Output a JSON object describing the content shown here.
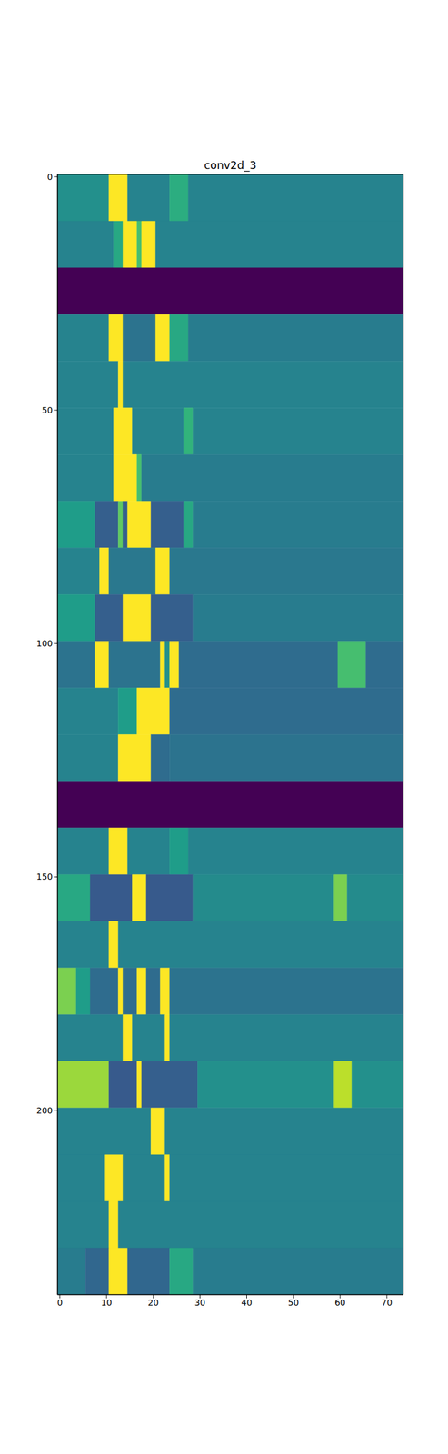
{
  "chart_data": {
    "type": "heatmap",
    "title": "conv2d_3",
    "xlim": [
      -0.5,
      73.5
    ],
    "xticks": [
      0,
      10,
      20,
      30,
      40,
      50,
      60,
      70
    ],
    "ylim": [
      239.5,
      -0.5
    ],
    "yticks": [
      0,
      50,
      100,
      150,
      200
    ],
    "cells": [
      {
        "rows": [
          0,
          9
        ],
        "segments": [
          [
            0,
            10,
            0.5
          ],
          [
            11,
            14,
            1
          ],
          [
            15,
            23,
            0.45
          ],
          [
            24,
            27,
            0.62
          ],
          [
            28,
            73,
            0.45
          ]
        ]
      },
      {
        "rows": [
          10,
          19
        ],
        "segments": [
          [
            0,
            11,
            0.45
          ],
          [
            12,
            13,
            0.6
          ],
          [
            14,
            16,
            1
          ],
          [
            17,
            17,
            0.7
          ],
          [
            18,
            20,
            1
          ],
          [
            21,
            73,
            0.45
          ]
        ]
      },
      {
        "rows": [
          20,
          29
        ],
        "segments": [
          [
            0,
            73,
            0
          ]
        ]
      },
      {
        "rows": [
          30,
          39
        ],
        "segments": [
          [
            0,
            10,
            0.45
          ],
          [
            11,
            13,
            1
          ],
          [
            14,
            20,
            0.38
          ],
          [
            21,
            23,
            1
          ],
          [
            24,
            27,
            0.6
          ],
          [
            28,
            73,
            0.42
          ]
        ]
      },
      {
        "rows": [
          40,
          49
        ],
        "segments": [
          [
            0,
            12,
            0.45
          ],
          [
            13,
            13,
            1
          ],
          [
            14,
            73,
            0.45
          ]
        ]
      },
      {
        "rows": [
          50,
          59
        ],
        "segments": [
          [
            0,
            11,
            0.45
          ],
          [
            12,
            15,
            1
          ],
          [
            16,
            26,
            0.45
          ],
          [
            27,
            28,
            0.65
          ],
          [
            29,
            73,
            0.45
          ]
        ]
      },
      {
        "rows": [
          60,
          69
        ],
        "segments": [
          [
            0,
            11,
            0.45
          ],
          [
            12,
            16,
            1
          ],
          [
            17,
            17,
            0.7
          ],
          [
            18,
            73,
            0.42
          ]
        ]
      },
      {
        "rows": [
          70,
          79
        ],
        "segments": [
          [
            0,
            7,
            0.55
          ],
          [
            8,
            12,
            0.3
          ],
          [
            13,
            13,
            0.75
          ],
          [
            14,
            14,
            0.3
          ],
          [
            15,
            19,
            1
          ],
          [
            20,
            26,
            0.3
          ],
          [
            27,
            28,
            0.6
          ],
          [
            29,
            73,
            0.42
          ]
        ]
      },
      {
        "rows": [
          80,
          89
        ],
        "segments": [
          [
            0,
            8,
            0.45
          ],
          [
            9,
            10,
            1
          ],
          [
            11,
            20,
            0.4
          ],
          [
            21,
            23,
            1
          ],
          [
            24,
            73,
            0.4
          ]
        ]
      },
      {
        "rows": [
          90,
          99
        ],
        "segments": [
          [
            0,
            7,
            0.55
          ],
          [
            8,
            13,
            0.3
          ],
          [
            14,
            19,
            1
          ],
          [
            20,
            28,
            0.3
          ],
          [
            29,
            73,
            0.42
          ]
        ]
      },
      {
        "rows": [
          100,
          109
        ],
        "segments": [
          [
            0,
            7,
            0.38
          ],
          [
            8,
            10,
            1
          ],
          [
            11,
            21,
            0.38
          ],
          [
            22,
            22,
            1
          ],
          [
            23,
            23,
            0.5
          ],
          [
            24,
            25,
            1
          ],
          [
            26,
            59,
            0.35
          ],
          [
            60,
            65,
            0.7
          ],
          [
            66,
            73,
            0.35
          ]
        ]
      },
      {
        "rows": [
          110,
          119
        ],
        "segments": [
          [
            0,
            12,
            0.45
          ],
          [
            13,
            16,
            0.55
          ],
          [
            17,
            23,
            1
          ],
          [
            24,
            73,
            0.35
          ]
        ]
      },
      {
        "rows": [
          120,
          129
        ],
        "segments": [
          [
            0,
            12,
            0.45
          ],
          [
            13,
            19,
            1
          ],
          [
            20,
            23,
            0.35
          ],
          [
            24,
            73,
            0.38
          ]
        ]
      },
      {
        "rows": [
          130,
          139
        ],
        "segments": [
          [
            0,
            73,
            0
          ]
        ]
      },
      {
        "rows": [
          140,
          149
        ],
        "segments": [
          [
            0,
            10,
            0.45
          ],
          [
            11,
            14,
            1
          ],
          [
            15,
            23,
            0.45
          ],
          [
            24,
            27,
            0.55
          ],
          [
            28,
            73,
            0.45
          ]
        ]
      },
      {
        "rows": [
          150,
          159
        ],
        "segments": [
          [
            0,
            6,
            0.6
          ],
          [
            7,
            15,
            0.28
          ],
          [
            16,
            18,
            1
          ],
          [
            19,
            28,
            0.28
          ],
          [
            29,
            58,
            0.48
          ],
          [
            59,
            61,
            0.8
          ],
          [
            62,
            73,
            0.48
          ]
        ]
      },
      {
        "rows": [
          160,
          169
        ],
        "segments": [
          [
            0,
            10,
            0.45
          ],
          [
            11,
            12,
            1
          ],
          [
            13,
            73,
            0.45
          ]
        ]
      },
      {
        "rows": [
          170,
          179
        ],
        "segments": [
          [
            0,
            3,
            0.8
          ],
          [
            4,
            6,
            0.55
          ],
          [
            7,
            12,
            0.35
          ],
          [
            13,
            13,
            1
          ],
          [
            14,
            16,
            0.35
          ],
          [
            17,
            18,
            1
          ],
          [
            19,
            21,
            0.35
          ],
          [
            22,
            23,
            1
          ],
          [
            24,
            73,
            0.38
          ]
        ]
      },
      {
        "rows": [
          180,
          189
        ],
        "segments": [
          [
            0,
            13,
            0.45
          ],
          [
            14,
            15,
            1
          ],
          [
            16,
            22,
            0.45
          ],
          [
            23,
            23,
            1
          ],
          [
            24,
            73,
            0.45
          ]
        ]
      },
      {
        "rows": [
          190,
          199
        ],
        "segments": [
          [
            0,
            10,
            0.85
          ],
          [
            11,
            16,
            0.28
          ],
          [
            17,
            17,
            1
          ],
          [
            18,
            29,
            0.3
          ],
          [
            30,
            58,
            0.5
          ],
          [
            59,
            62,
            0.9
          ],
          [
            63,
            73,
            0.5
          ]
        ]
      },
      {
        "rows": [
          200,
          209
        ],
        "segments": [
          [
            0,
            19,
            0.45
          ],
          [
            20,
            22,
            1
          ],
          [
            23,
            73,
            0.45
          ]
        ]
      },
      {
        "rows": [
          210,
          219
        ],
        "segments": [
          [
            0,
            9,
            0.45
          ],
          [
            10,
            13,
            1
          ],
          [
            14,
            22,
            0.45
          ],
          [
            23,
            23,
            1
          ],
          [
            24,
            73,
            0.45
          ]
        ]
      },
      {
        "rows": [
          220,
          229
        ],
        "segments": [
          [
            0,
            10,
            0.45
          ],
          [
            11,
            12,
            1
          ],
          [
            13,
            73,
            0.45
          ]
        ]
      },
      {
        "rows": [
          230,
          239
        ],
        "segments": [
          [
            0,
            5,
            0.42
          ],
          [
            6,
            10,
            0.33
          ],
          [
            11,
            14,
            1
          ],
          [
            15,
            23,
            0.33
          ],
          [
            24,
            28,
            0.6
          ],
          [
            29,
            73,
            0.42
          ]
        ]
      }
    ]
  }
}
